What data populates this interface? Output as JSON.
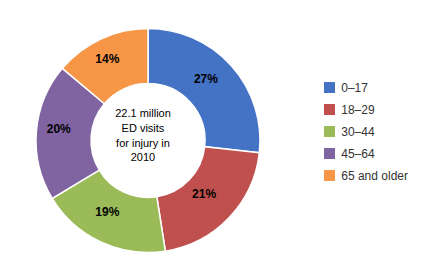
{
  "chart_data": {
    "type": "donut",
    "categories": [
      "0–17",
      "18–29",
      "30–44",
      "45–64",
      "65 and older"
    ],
    "values": [
      27,
      21,
      19,
      20,
      14
    ],
    "value_labels": [
      "27%",
      "21%",
      "19%",
      "20%",
      "14%"
    ],
    "colors": [
      "#4472C4",
      "#C0504D",
      "#9BBB59",
      "#8064A2",
      "#F79646"
    ],
    "annotation": "22.1 million\nED visits\nfor injury in\n2010",
    "data_labels": true,
    "legend": "right"
  }
}
